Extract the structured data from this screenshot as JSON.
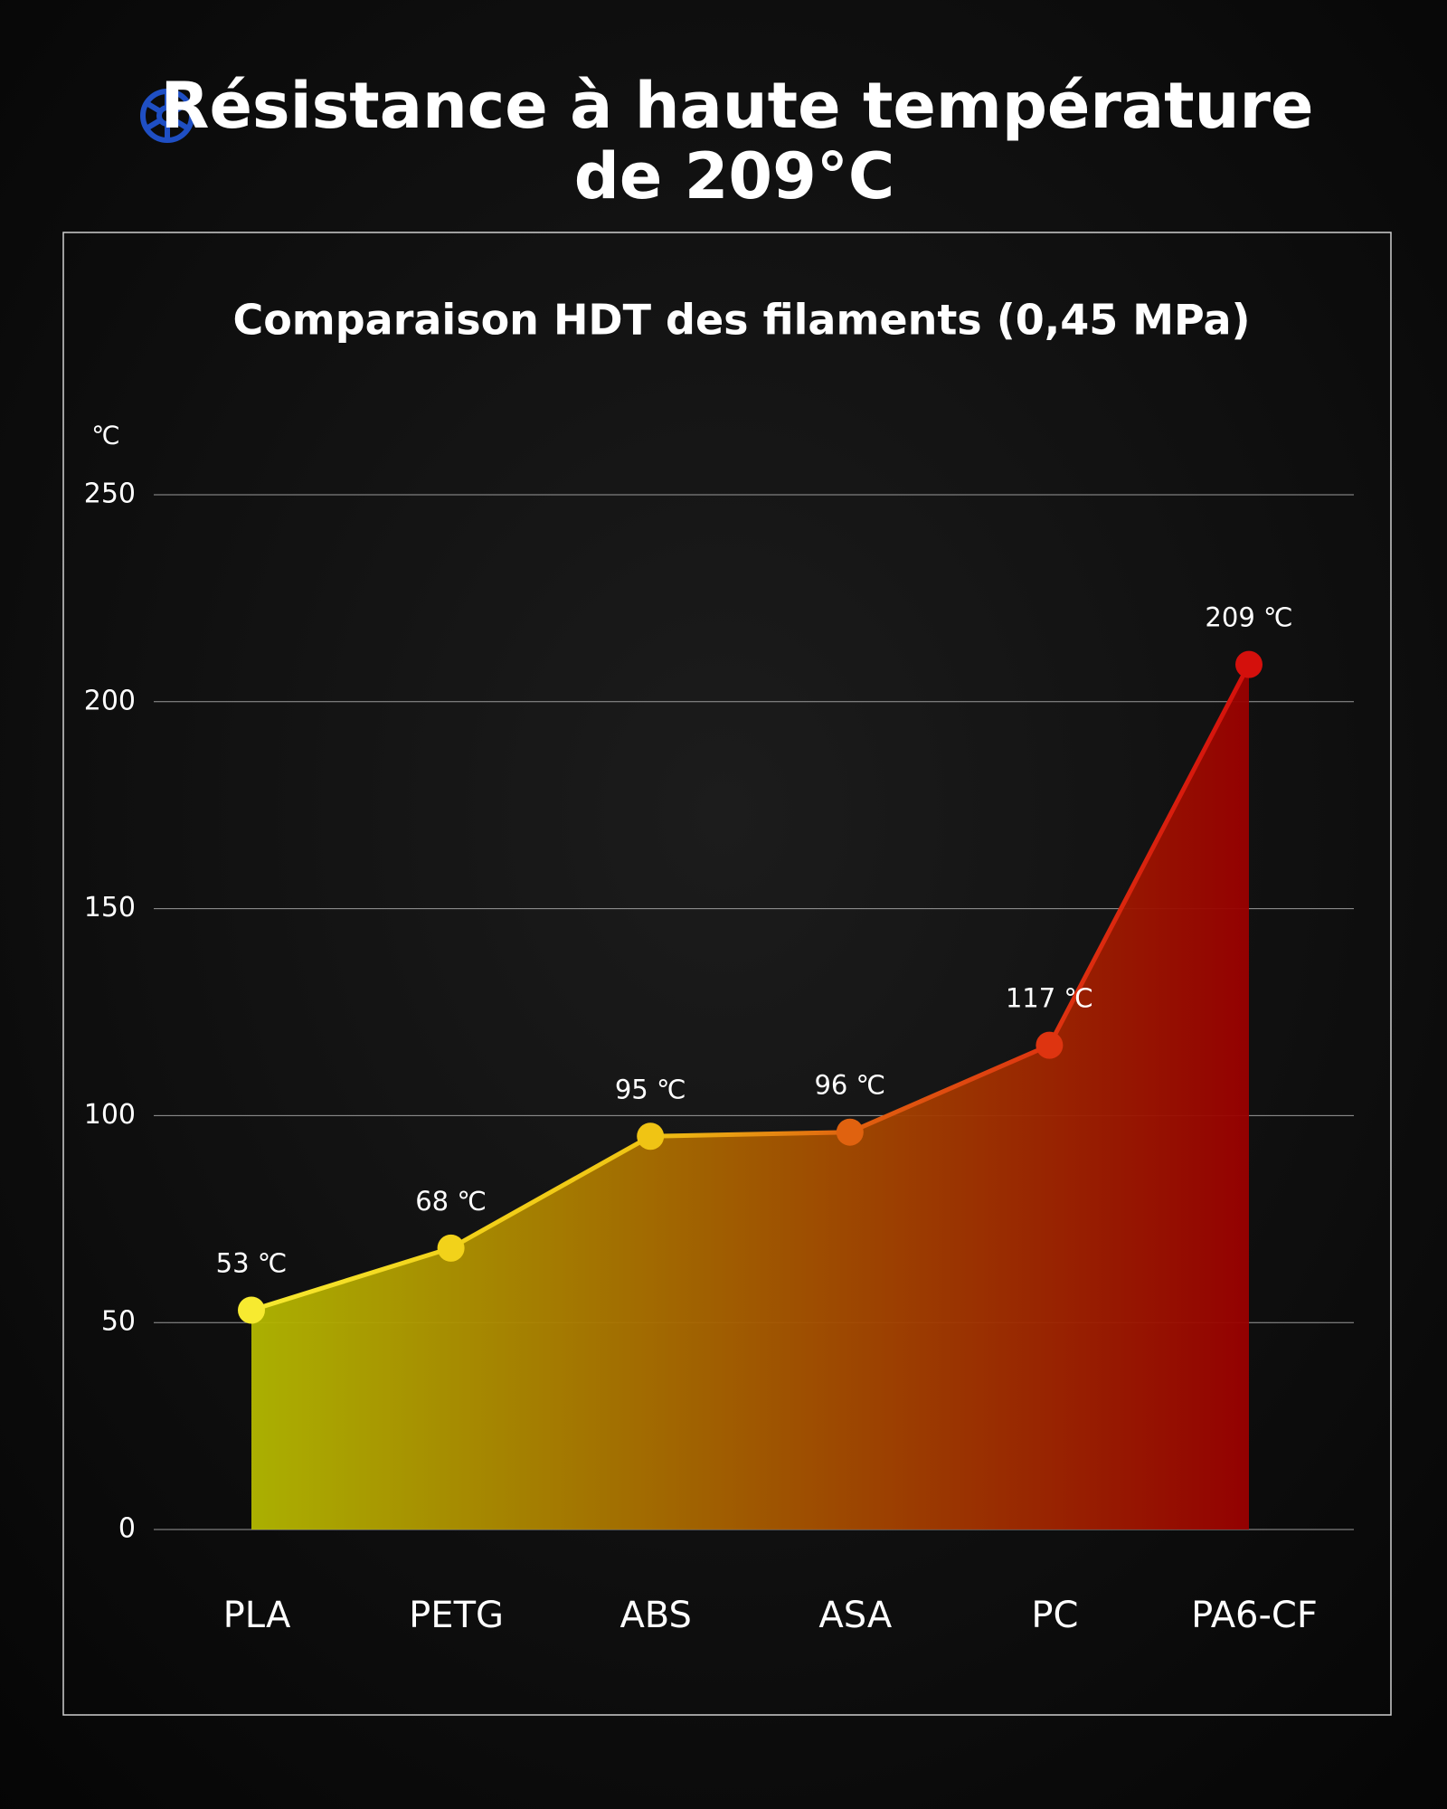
{
  "chart_data": {
    "type": "area",
    "title": [
      "Résistance à haute température",
      "de 209°C"
    ],
    "subtitle": "Comparaison HDT des filaments (0,45 MPa)",
    "y_label": "℃",
    "categories": [
      "PLA",
      "PETG",
      "ABS",
      "ASA",
      "PC",
      "PA6-CF"
    ],
    "values": [
      53,
      68,
      95,
      96,
      117,
      209
    ],
    "value_labels": [
      "53 ℃",
      "68 ℃",
      "95 ℃",
      "96 ℃",
      "117 ℃",
      "209 ℃"
    ],
    "point_colors": [
      "#f7ea30",
      "#f2d21a",
      "#f0c414",
      "#e0620f",
      "#de3410",
      "#d4100c"
    ],
    "area_colors": [
      "#b3b800",
      "#9a0000"
    ],
    "ylim": [
      0,
      250
    ],
    "yticks": [
      0,
      50,
      100,
      150,
      200,
      250
    ],
    "grid": true
  }
}
